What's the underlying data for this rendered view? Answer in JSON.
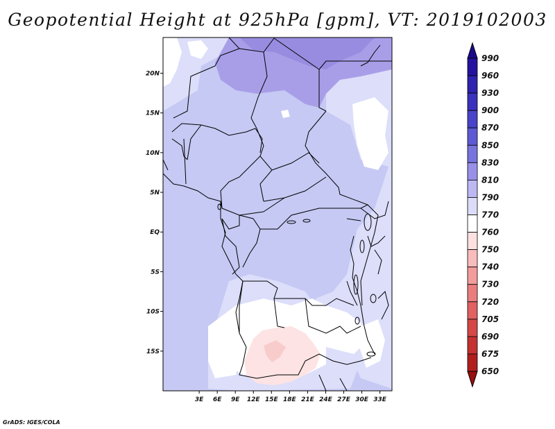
{
  "title": "Geopotential Height at 925hPa [gpm], VT: 2019102003",
  "credit": "GrADS: IGES/COLA",
  "map": {
    "projection": "latlon",
    "lon_range": [
      -3,
      35
    ],
    "lat_range": [
      -20,
      24.5
    ],
    "lat_ticks": [
      {
        "value": 20,
        "label": "20N"
      },
      {
        "value": 15,
        "label": "15N"
      },
      {
        "value": 10,
        "label": "10N"
      },
      {
        "value": 5,
        "label": "5N"
      },
      {
        "value": 0,
        "label": "EQ"
      },
      {
        "value": -5,
        "label": "5S"
      },
      {
        "value": -10,
        "label": "10S"
      },
      {
        "value": -15,
        "label": "15S"
      }
    ],
    "lon_ticks": [
      {
        "value": 3,
        "label": "3E"
      },
      {
        "value": 6,
        "label": "6E"
      },
      {
        "value": 9,
        "label": "9E"
      },
      {
        "value": 12,
        "label": "12E"
      },
      {
        "value": 15,
        "label": "15E"
      },
      {
        "value": 18,
        "label": "18E"
      },
      {
        "value": 21,
        "label": "21E"
      },
      {
        "value": 24,
        "label": "24E"
      },
      {
        "value": 27,
        "label": "27E"
      },
      {
        "value": 30,
        "label": "30E"
      },
      {
        "value": 33,
        "label": "33E"
      }
    ]
  },
  "colorbar": {
    "levels": [
      "990",
      "960",
      "930",
      "900",
      "870",
      "850",
      "830",
      "810",
      "790",
      "770",
      "760",
      "750",
      "740",
      "730",
      "720",
      "705",
      "690",
      "675",
      "650"
    ],
    "colors": [
      "#1a0a8c",
      "#24129e",
      "#2e22ae",
      "#3a32bc",
      "#4a44c8",
      "#5e5ad4",
      "#7874de",
      "#9890e8",
      "#bcb8f2",
      "#dcdcfa",
      "#ffffff",
      "#fde0e0",
      "#f8bcbc",
      "#f29c9c",
      "#ea7e7e",
      "#e06262",
      "#d44848",
      "#c43232",
      "#b01e1e",
      "#9a0e0e"
    ]
  },
  "colors": {
    "field_base": "#c5c9f3",
    "field_light": "#dcdefa",
    "field_high": "#a89ee8",
    "field_higher": "#978cdf",
    "field_white": "#ffffff",
    "field_pink": "#fde3e3",
    "field_pink_dark": "#f9cccc",
    "border": "#000000"
  }
}
